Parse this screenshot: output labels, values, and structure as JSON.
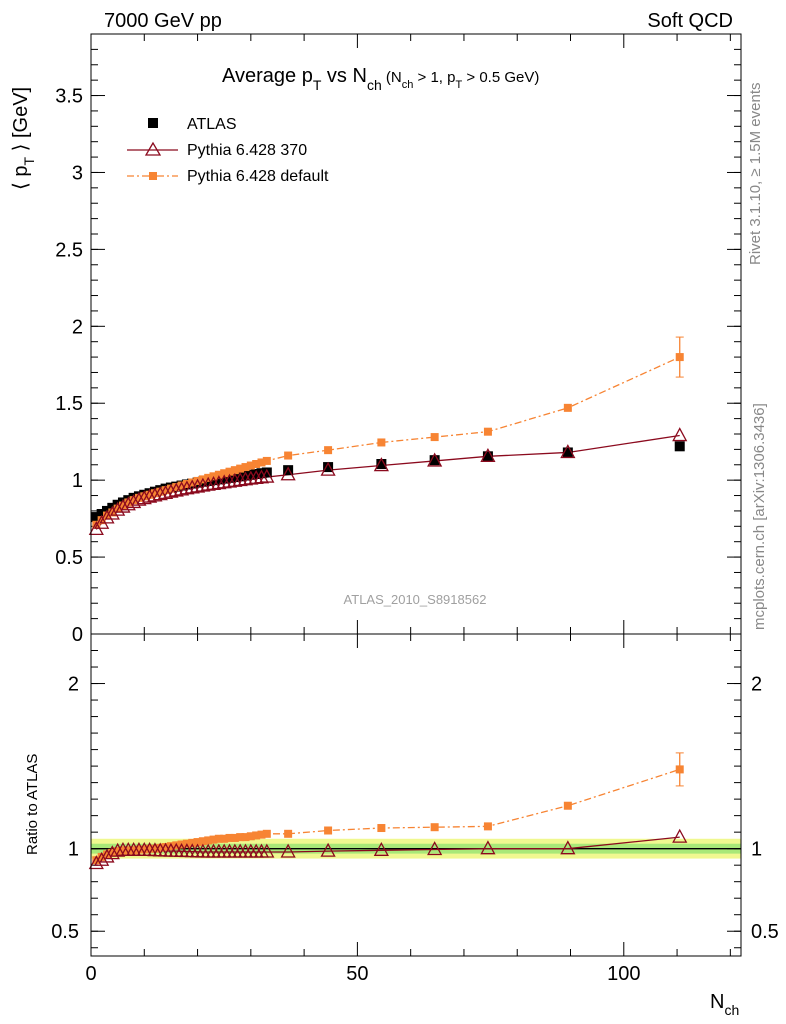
{
  "header": {
    "left": "7000 GeV pp",
    "right": "Soft QCD"
  },
  "side": {
    "rivet": "Rivet 3.1.10, ≥ 1.5M events",
    "mcplots": "mcplots.cern.ch [arXiv:1306.3436]"
  },
  "title": {
    "main_a": "Average p",
    "main_sub": "T",
    "main_b": " vs N",
    "main_sub2": "ch",
    "cut_a": " (N",
    "cut_sub": "ch",
    "cut_b": " > 1, p",
    "cut_sub2": "T",
    "cut_c": " > 0.5 GeV)"
  },
  "watermark": "ATLAS_2010_S8918562",
  "ylabel_top": {
    "a": "⟨ p",
    "sub": "T",
    "b": " ⟩ [GeV]"
  },
  "ylabel_bottom": "Ratio to ATLAS",
  "xlabel": {
    "a": "N",
    "sub": "ch"
  },
  "colors": {
    "atlas": "#000000",
    "p370": "#8b0a1e",
    "pdefault": "#f78433",
    "band_outer": "#f0f890",
    "band_inner": "#a8e878"
  },
  "chart_data": [
    {
      "type": "scatter",
      "panel": "main",
      "ylim": [
        0,
        3.9
      ],
      "xlim": [
        0,
        122
      ],
      "yticks": [
        "0",
        "0.5",
        "1",
        "1.5",
        "2",
        "2.5",
        "3",
        "3.5"
      ],
      "xticks": [
        "0",
        "50",
        "100"
      ],
      "legend_position": "top-left",
      "series": [
        {
          "name": "ATLAS",
          "x": [
            1,
            2,
            3,
            4,
            5,
            6,
            7,
            8,
            9,
            10,
            11,
            12,
            13,
            14,
            15,
            16,
            17,
            18,
            19,
            20,
            21,
            22,
            23,
            24,
            25,
            26,
            27,
            28,
            29,
            30,
            31,
            32,
            33,
            37,
            44.5,
            54.5,
            64.5,
            74.5,
            89.5,
            110.5
          ],
          "y": [
            0.76,
            0.78,
            0.8,
            0.82,
            0.84,
            0.855,
            0.87,
            0.885,
            0.895,
            0.905,
            0.915,
            0.925,
            0.935,
            0.945,
            0.952,
            0.958,
            0.965,
            0.972,
            0.978,
            0.984,
            0.99,
            0.995,
            1.0,
            1.005,
            1.01,
            1.015,
            1.02,
            1.025,
            1.03,
            1.035,
            1.04,
            1.045,
            1.05,
            1.065,
            1.085,
            1.105,
            1.13,
            1.155,
            1.18,
            1.22
          ]
        },
        {
          "name": "Pythia 6.428 370",
          "x": [
            1,
            2,
            3,
            4,
            5,
            6,
            7,
            8,
            9,
            10,
            11,
            12,
            13,
            14,
            15,
            16,
            17,
            18,
            19,
            20,
            21,
            22,
            23,
            24,
            25,
            26,
            27,
            28,
            29,
            30,
            31,
            32,
            33,
            37,
            44.5,
            54.5,
            64.5,
            74.5,
            89.5,
            110.5
          ],
          "y": [
            0.68,
            0.72,
            0.755,
            0.78,
            0.805,
            0.825,
            0.84,
            0.855,
            0.87,
            0.88,
            0.89,
            0.898,
            0.906,
            0.914,
            0.922,
            0.93,
            0.937,
            0.944,
            0.95,
            0.956,
            0.962,
            0.968,
            0.973,
            0.978,
            0.983,
            0.988,
            0.993,
            0.998,
            1.003,
            1.008,
            1.012,
            1.016,
            1.02,
            1.035,
            1.065,
            1.095,
            1.125,
            1.155,
            1.18,
            1.29
          ]
        },
        {
          "name": "Pythia 6.428 default",
          "x": [
            1,
            2,
            3,
            4,
            5,
            6,
            7,
            8,
            9,
            10,
            11,
            12,
            13,
            14,
            15,
            16,
            17,
            18,
            19,
            20,
            21,
            22,
            23,
            24,
            25,
            26,
            27,
            28,
            29,
            30,
            31,
            32,
            33,
            37,
            44.5,
            54.5,
            64.5,
            74.5,
            89.5,
            110.5
          ],
          "y": [
            0.71,
            0.74,
            0.77,
            0.79,
            0.815,
            0.835,
            0.855,
            0.87,
            0.885,
            0.895,
            0.905,
            0.915,
            0.925,
            0.935,
            0.945,
            0.955,
            0.965,
            0.975,
            0.985,
            0.995,
            1.005,
            1.015,
            1.025,
            1.035,
            1.045,
            1.055,
            1.065,
            1.075,
            1.085,
            1.095,
            1.105,
            1.115,
            1.125,
            1.16,
            1.195,
            1.245,
            1.28,
            1.315,
            1.47,
            1.8
          ],
          "yerr_last": 0.13
        }
      ]
    },
    {
      "type": "scatter",
      "panel": "ratio",
      "ylim": [
        0.35,
        2.3
      ],
      "xlim": [
        0,
        122
      ],
      "yticks": [
        "0.5",
        "1",
        "2"
      ],
      "band": {
        "outer": [
          0.94,
          1.06
        ],
        "inner": [
          0.97,
          1.03
        ]
      },
      "series": [
        {
          "name": "Pythia 6.428 370",
          "x": [
            1,
            2,
            3,
            4,
            5,
            6,
            7,
            8,
            9,
            10,
            11,
            12,
            13,
            14,
            15,
            16,
            17,
            18,
            19,
            20,
            21,
            22,
            23,
            24,
            25,
            26,
            27,
            28,
            29,
            30,
            31,
            32,
            33,
            37,
            44.5,
            54.5,
            64.5,
            74.5,
            89.5,
            110.5
          ],
          "y": [
            0.91,
            0.93,
            0.95,
            0.97,
            0.985,
            0.99,
            0.99,
            0.99,
            0.99,
            0.99,
            0.99,
            0.988,
            0.987,
            0.986,
            0.985,
            0.985,
            0.984,
            0.983,
            0.982,
            0.981,
            0.98,
            0.98,
            0.98,
            0.98,
            0.98,
            0.98,
            0.98,
            0.98,
            0.98,
            0.98,
            0.98,
            0.98,
            0.98,
            0.98,
            0.985,
            0.99,
            0.995,
            1.0,
            1.0,
            1.07
          ]
        },
        {
          "name": "Pythia 6.428 default",
          "x": [
            1,
            2,
            3,
            4,
            5,
            6,
            7,
            8,
            9,
            10,
            11,
            12,
            13,
            14,
            15,
            16,
            17,
            18,
            19,
            20,
            21,
            22,
            23,
            24,
            25,
            26,
            27,
            28,
            29,
            30,
            31,
            32,
            33,
            37,
            44.5,
            54.5,
            64.5,
            74.5,
            89.5,
            110.5
          ],
          "y": [
            0.93,
            0.95,
            0.965,
            0.975,
            0.985,
            0.99,
            0.99,
            0.99,
            0.995,
            0.995,
            1.0,
            1.0,
            1.005,
            1.01,
            1.015,
            1.02,
            1.025,
            1.03,
            1.035,
            1.04,
            1.045,
            1.05,
            1.055,
            1.06,
            1.06,
            1.065,
            1.065,
            1.07,
            1.07,
            1.075,
            1.08,
            1.085,
            1.09,
            1.09,
            1.11,
            1.125,
            1.13,
            1.135,
            1.26,
            1.48
          ],
          "yerr_last": 0.1
        }
      ]
    }
  ]
}
